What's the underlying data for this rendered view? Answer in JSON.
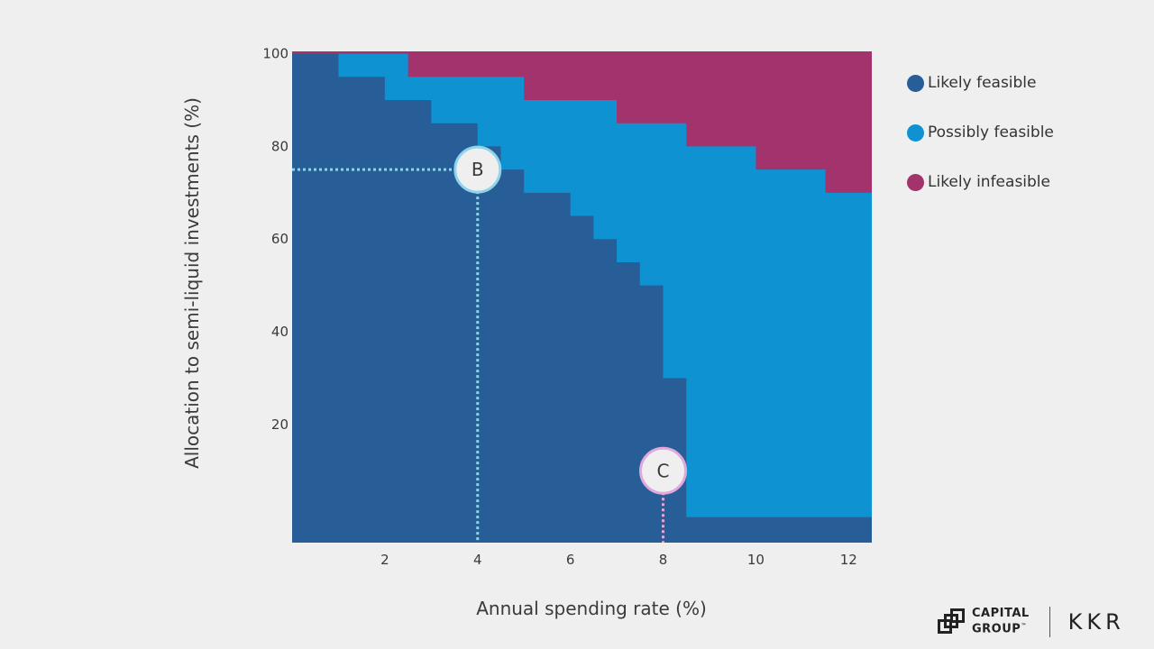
{
  "chart_data": {
    "type": "area",
    "xlabel": "Annual spending rate (%)",
    "ylabel": "Allocation to semi-liquid investments (%)",
    "xlim": [
      0,
      12.5
    ],
    "ylim": [
      -5.5,
      100.5
    ],
    "xticks": [
      2,
      4,
      6,
      8,
      10,
      12
    ],
    "yticks": [
      20,
      40,
      60,
      80,
      100
    ],
    "series": [
      {
        "name": "Likely feasible",
        "color": "#285e98",
        "boundary": [
          {
            "x": 0.5,
            "y": 100
          },
          {
            "x": 1,
            "y": 95
          },
          {
            "x": 2,
            "y": 90
          },
          {
            "x": 3,
            "y": 85
          },
          {
            "x": 4,
            "y": 80
          },
          {
            "x": 4.5,
            "y": 75
          },
          {
            "x": 5,
            "y": 70
          },
          {
            "x": 6,
            "y": 65
          },
          {
            "x": 6.5,
            "y": 60
          },
          {
            "x": 7,
            "y": 55
          },
          {
            "x": 7.5,
            "y": 50
          },
          {
            "x": 8,
            "y": 30
          },
          {
            "x": 8.5,
            "y": 0
          }
        ]
      },
      {
        "name": "Possibly feasible",
        "color": "#0f92d2",
        "boundary": [
          {
            "x": 0.5,
            "y": 100
          },
          {
            "x": 2.5,
            "y": 95
          },
          {
            "x": 5,
            "y": 90
          },
          {
            "x": 7,
            "y": 85
          },
          {
            "x": 8.5,
            "y": 80
          },
          {
            "x": 10,
            "y": 75
          },
          {
            "x": 11.5,
            "y": 70
          },
          {
            "x": 12.5,
            "y": 70
          }
        ]
      },
      {
        "name": "Likely infeasible",
        "color": "#a3336d"
      }
    ],
    "annotations": [
      {
        "label": "B",
        "x": 4,
        "y": 75,
        "color": "#8fd4ea"
      },
      {
        "label": "C",
        "x": 8,
        "y": 10,
        "color": "#e0a8dc"
      }
    ]
  },
  "logos": {
    "capital_group_line1": "CAPITAL",
    "capital_group_line2": "GROUP",
    "capital_group_tm": "™",
    "kkr": "KKR"
  }
}
